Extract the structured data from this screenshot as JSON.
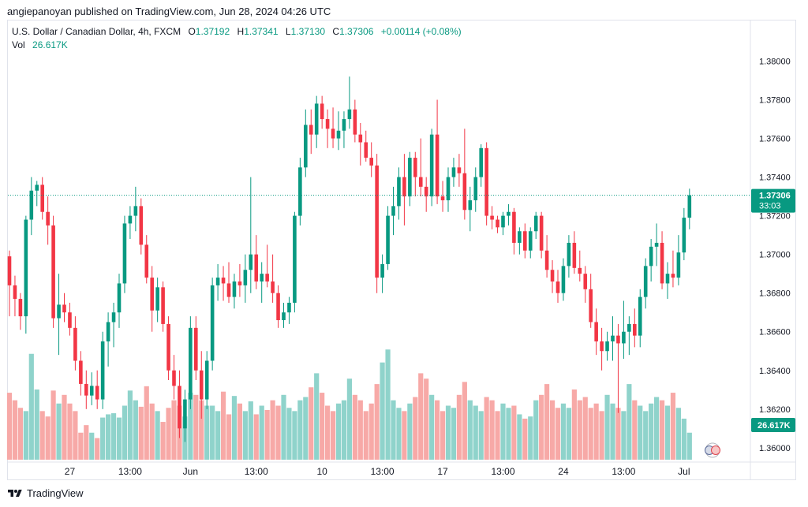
{
  "caption": "angiepanoyan published on TradingView.com, Jun 28, 2024 04:26 UTC",
  "legend": {
    "symbol": "U.S. Dollar / Canadian Dollar, 4h, FXCM",
    "o_label": "O",
    "o_value": "1.37192",
    "h_label": "H",
    "h_value": "1.37341",
    "l_label": "L",
    "l_value": "1.37130",
    "c_label": "C",
    "c_value": "1.37306",
    "change": "+0.00114 (+0.08%)",
    "vol_label": "Vol",
    "vol_value": "26.617K"
  },
  "footer": {
    "brand": "TradingView"
  },
  "colors": {
    "up": "#089981",
    "down": "#f23645",
    "vol_up": "#8fd3cb",
    "vol_down": "#f7a9a7"
  },
  "chart_data": {
    "type": "candlestick",
    "y_ticks": [
      "1.38000",
      "1.37800",
      "1.37600",
      "1.37400",
      "1.37200",
      "1.37000",
      "1.36800",
      "1.36600",
      "1.36400",
      "1.36200",
      "1.36000"
    ],
    "ylim": [
      1.3593,
      1.3821
    ],
    "x_ticks": [
      {
        "label": "27",
        "index": 11
      },
      {
        "label": "13:00",
        "index": 22
      },
      {
        "label": "Jun",
        "index": 33
      },
      {
        "label": "13:00",
        "index": 45
      },
      {
        "label": "10",
        "index": 57
      },
      {
        "label": "13:00",
        "index": 68
      },
      {
        "label": "17",
        "index": 79
      },
      {
        "label": "13:00",
        "index": 90
      },
      {
        "label": "24",
        "index": 101
      },
      {
        "label": "13:00",
        "index": 112
      },
      {
        "label": "Jul",
        "index": 123
      }
    ],
    "price_label": "1.37306",
    "countdown": "33:03",
    "volume_label": "26.617K",
    "current_price": 1.37306,
    "candles": [
      [
        1.3699,
        1.3702,
        1.3668,
        1.3684
      ],
      [
        1.3684,
        1.3689,
        1.3668,
        1.3677
      ],
      [
        1.3677,
        1.368,
        1.3661,
        1.3668
      ],
      [
        1.3668,
        1.372,
        1.3659,
        1.3718
      ],
      [
        1.3718,
        1.374,
        1.371,
        1.3733
      ],
      [
        1.3733,
        1.3738,
        1.3725,
        1.3736
      ],
      [
        1.3736,
        1.374,
        1.3718,
        1.3722
      ],
      [
        1.3722,
        1.373,
        1.3705,
        1.3715
      ],
      [
        1.3715,
        1.372,
        1.3662,
        1.3667
      ],
      [
        1.3667,
        1.369,
        1.3648,
        1.3674
      ],
      [
        1.3674,
        1.368,
        1.3665,
        1.367
      ],
      [
        1.367,
        1.3675,
        1.3658,
        1.3662
      ],
      [
        1.3662,
        1.3668,
        1.364,
        1.3645
      ],
      [
        1.3645,
        1.365,
        1.3627,
        1.3633
      ],
      [
        1.3633,
        1.364,
        1.362,
        1.3627
      ],
      [
        1.3627,
        1.3639,
        1.3622,
        1.3632
      ],
      [
        1.3632,
        1.364,
        1.362,
        1.3625
      ],
      [
        1.3625,
        1.366,
        1.362,
        1.3655
      ],
      [
        1.3655,
        1.367,
        1.3642,
        1.3665
      ],
      [
        1.3665,
        1.3675,
        1.3652,
        1.367
      ],
      [
        1.367,
        1.369,
        1.3662,
        1.3685
      ],
      [
        1.3685,
        1.372,
        1.368,
        1.3716
      ],
      [
        1.3716,
        1.3725,
        1.3708,
        1.372
      ],
      [
        1.372,
        1.3735,
        1.3712,
        1.3725
      ],
      [
        1.3725,
        1.3729,
        1.37,
        1.3705
      ],
      [
        1.3705,
        1.371,
        1.3685,
        1.3688
      ],
      [
        1.3688,
        1.3694,
        1.366,
        1.3671
      ],
      [
        1.3671,
        1.3688,
        1.3665,
        1.3683
      ],
      [
        1.3683,
        1.3686,
        1.366,
        1.3664
      ],
      [
        1.3664,
        1.3668,
        1.3635,
        1.364
      ],
      [
        1.364,
        1.3648,
        1.3625,
        1.3632
      ],
      [
        1.3632,
        1.364,
        1.3605,
        1.361
      ],
      [
        1.361,
        1.363,
        1.3603,
        1.3625
      ],
      [
        1.3625,
        1.3668,
        1.362,
        1.3662
      ],
      [
        1.3662,
        1.3668,
        1.3635,
        1.364
      ],
      [
        1.364,
        1.365,
        1.3615,
        1.3625
      ],
      [
        1.3625,
        1.365,
        1.362,
        1.3645
      ],
      [
        1.3645,
        1.3688,
        1.364,
        1.3684
      ],
      [
        1.3684,
        1.3695,
        1.3676,
        1.3688
      ],
      [
        1.3688,
        1.3694,
        1.3676,
        1.3685
      ],
      [
        1.3685,
        1.3696,
        1.3675,
        1.3678
      ],
      [
        1.3678,
        1.369,
        1.3672,
        1.3686
      ],
      [
        1.3686,
        1.3695,
        1.3678,
        1.3684
      ],
      [
        1.3684,
        1.37,
        1.3675,
        1.3692
      ],
      [
        1.3692,
        1.374,
        1.368,
        1.37
      ],
      [
        1.37,
        1.371,
        1.3682,
        1.3686
      ],
      [
        1.3686,
        1.3696,
        1.3675,
        1.369
      ],
      [
        1.369,
        1.3705,
        1.3683,
        1.3686
      ],
      [
        1.3686,
        1.37,
        1.3675,
        1.368
      ],
      [
        1.368,
        1.3684,
        1.3662,
        1.3666
      ],
      [
        1.3666,
        1.3675,
        1.3662,
        1.367
      ],
      [
        1.367,
        1.3678,
        1.3664,
        1.3675
      ],
      [
        1.3675,
        1.3722,
        1.367,
        1.372
      ],
      [
        1.372,
        1.375,
        1.3715,
        1.3745
      ],
      [
        1.3745,
        1.3775,
        1.374,
        1.3767
      ],
      [
        1.3767,
        1.3775,
        1.3752,
        1.3762
      ],
      [
        1.3762,
        1.3782,
        1.3755,
        1.3778
      ],
      [
        1.3778,
        1.3782,
        1.3765,
        1.377
      ],
      [
        1.377,
        1.3775,
        1.3755,
        1.3765
      ],
      [
        1.3765,
        1.3776,
        1.3755,
        1.376
      ],
      [
        1.376,
        1.3774,
        1.3754,
        1.3764
      ],
      [
        1.3764,
        1.3774,
        1.3755,
        1.377
      ],
      [
        1.377,
        1.3792,
        1.3765,
        1.3775
      ],
      [
        1.3775,
        1.378,
        1.3758,
        1.3762
      ],
      [
        1.3762,
        1.3768,
        1.3746,
        1.3758
      ],
      [
        1.3758,
        1.3764,
        1.3748,
        1.375
      ],
      [
        1.375,
        1.3758,
        1.374,
        1.3746
      ],
      [
        1.3746,
        1.3752,
        1.368,
        1.3688
      ],
      [
        1.3688,
        1.37,
        1.368,
        1.3695
      ],
      [
        1.3695,
        1.3725,
        1.3692,
        1.372
      ],
      [
        1.372,
        1.3735,
        1.371,
        1.3725
      ],
      [
        1.3725,
        1.3745,
        1.3718,
        1.374
      ],
      [
        1.374,
        1.3752,
        1.3715,
        1.373
      ],
      [
        1.373,
        1.3753,
        1.3725,
        1.375
      ],
      [
        1.375,
        1.3753,
        1.373,
        1.374
      ],
      [
        1.374,
        1.376,
        1.373,
        1.3735
      ],
      [
        1.3735,
        1.374,
        1.3722,
        1.373
      ],
      [
        1.373,
        1.3765,
        1.3725,
        1.3762
      ],
      [
        1.3762,
        1.378,
        1.3726,
        1.373
      ],
      [
        1.373,
        1.3738,
        1.3722,
        1.3728
      ],
      [
        1.3728,
        1.3745,
        1.3722,
        1.374
      ],
      [
        1.374,
        1.375,
        1.3735,
        1.3745
      ],
      [
        1.3745,
        1.3752,
        1.3735,
        1.3742
      ],
      [
        1.3742,
        1.3765,
        1.3718,
        1.3723
      ],
      [
        1.3723,
        1.3735,
        1.3712,
        1.3728
      ],
      [
        1.3728,
        1.3745,
        1.3722,
        1.374
      ],
      [
        1.374,
        1.3757,
        1.3735,
        1.3755
      ],
      [
        1.3755,
        1.3758,
        1.3715,
        1.372
      ],
      [
        1.372,
        1.3725,
        1.3713,
        1.3718
      ],
      [
        1.3718,
        1.372,
        1.3711,
        1.3714
      ],
      [
        1.3714,
        1.3722,
        1.371,
        1.372
      ],
      [
        1.372,
        1.3726,
        1.3715,
        1.3722
      ],
      [
        1.3722,
        1.3724,
        1.37,
        1.3706
      ],
      [
        1.3706,
        1.3714,
        1.37,
        1.3712
      ],
      [
        1.3712,
        1.3716,
        1.3698,
        1.3702
      ],
      [
        1.3702,
        1.3714,
        1.3698,
        1.3712
      ],
      [
        1.3712,
        1.3722,
        1.3708,
        1.372
      ],
      [
        1.372,
        1.3722,
        1.3698,
        1.3702
      ],
      [
        1.3702,
        1.371,
        1.3688,
        1.3692
      ],
      [
        1.3692,
        1.3697,
        1.368,
        1.3686
      ],
      [
        1.3686,
        1.3692,
        1.3675,
        1.368
      ],
      [
        1.368,
        1.3698,
        1.3676,
        1.3694
      ],
      [
        1.3694,
        1.371,
        1.3688,
        1.3706
      ],
      [
        1.3706,
        1.3712,
        1.369,
        1.3693
      ],
      [
        1.3693,
        1.3702,
        1.3686,
        1.369
      ],
      [
        1.369,
        1.3694,
        1.3675,
        1.3682
      ],
      [
        1.3682,
        1.369,
        1.3662,
        1.3665
      ],
      [
        1.3665,
        1.3672,
        1.3648,
        1.3655
      ],
      [
        1.3655,
        1.3662,
        1.364,
        1.365
      ],
      [
        1.365,
        1.366,
        1.3645,
        1.3655
      ],
      [
        1.3655,
        1.3668,
        1.3645,
        1.3658
      ],
      [
        1.3658,
        1.3664,
        1.3618,
        1.3654
      ],
      [
        1.3654,
        1.3676,
        1.3646,
        1.366
      ],
      [
        1.366,
        1.3668,
        1.3648,
        1.3664
      ],
      [
        1.3664,
        1.3672,
        1.3652,
        1.3658
      ],
      [
        1.3658,
        1.3682,
        1.3652,
        1.3678
      ],
      [
        1.3678,
        1.3698,
        1.3672,
        1.3694
      ],
      [
        1.3694,
        1.3708,
        1.3686,
        1.3704
      ],
      [
        1.3704,
        1.3716,
        1.3694,
        1.3706
      ],
      [
        1.3706,
        1.3712,
        1.3682,
        1.3685
      ],
      [
        1.3685,
        1.3696,
        1.3677,
        1.369
      ],
      [
        1.369,
        1.3702,
        1.3683,
        1.3688
      ],
      [
        1.3688,
        1.371,
        1.3684,
        1.3701
      ],
      [
        1.3701,
        1.3724,
        1.3697,
        1.3719
      ],
      [
        1.3719,
        1.3734,
        1.3713,
        1.37306
      ]
    ],
    "volume": [
      0.62,
      0.55,
      0.48,
      0.45,
      0.98,
      0.65,
      0.45,
      0.4,
      0.64,
      0.52,
      0.6,
      0.52,
      0.45,
      0.25,
      0.32,
      0.25,
      0.2,
      0.39,
      0.42,
      0.43,
      0.39,
      0.5,
      0.64,
      0.55,
      0.49,
      0.68,
      0.52,
      0.45,
      0.35,
      0.48,
      0.55,
      0.5,
      0.4,
      0.62,
      0.6,
      0.55,
      0.5,
      0.5,
      0.45,
      0.63,
      0.42,
      0.59,
      0.52,
      0.45,
      0.54,
      0.42,
      0.5,
      0.46,
      0.55,
      0.5,
      0.6,
      0.48,
      0.45,
      0.55,
      0.58,
      0.67,
      0.8,
      0.62,
      0.5,
      0.45,
      0.52,
      0.55,
      0.75,
      0.6,
      0.55,
      0.45,
      0.52,
      0.7,
      0.9,
      1.02,
      0.55,
      0.48,
      0.45,
      0.52,
      0.58,
      0.8,
      0.75,
      0.6,
      0.55,
      0.45,
      0.5,
      0.48,
      0.6,
      0.72,
      0.55,
      0.5,
      0.45,
      0.58,
      0.55,
      0.45,
      0.52,
      0.48,
      0.5,
      0.42,
      0.38,
      0.4,
      0.55,
      0.6,
      0.7,
      0.55,
      0.48,
      0.52,
      0.48,
      0.65,
      0.55,
      0.58,
      0.48,
      0.52,
      0.45,
      0.6,
      0.52,
      0.48,
      0.45,
      0.7,
      0.55,
      0.5,
      0.45,
      0.52,
      0.58,
      0.55,
      0.5,
      0.62,
      0.48,
      0.38,
      0.25
    ]
  }
}
